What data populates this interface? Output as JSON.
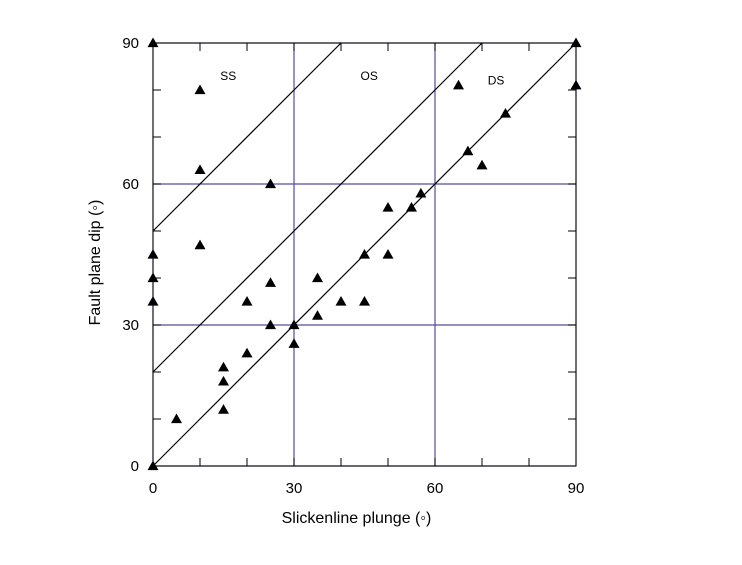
{
  "chart_data": {
    "type": "scatter",
    "title": "",
    "xlabel": "Slickenline  plunge (◦)",
    "ylabel": "Fault plane dip (◦)",
    "xlim": [
      0,
      90
    ],
    "ylim": [
      0,
      90
    ],
    "xticks": [
      0,
      30,
      60,
      90
    ],
    "yticks": [
      0,
      30,
      60,
      90
    ],
    "xtick_labels": [
      "0",
      "30",
      "60",
      "90"
    ],
    "ytick_labels": [
      "0",
      "30",
      "60",
      "90"
    ],
    "grid": true,
    "grid_color": "#5b4a99",
    "marker": "triangle",
    "marker_color": "#000000",
    "points": [
      [
        0,
        90
      ],
      [
        10,
        80
      ],
      [
        10,
        63
      ],
      [
        25,
        60
      ],
      [
        10,
        47
      ],
      [
        0,
        45
      ],
      [
        0,
        40
      ],
      [
        0,
        35
      ],
      [
        25,
        39
      ],
      [
        20,
        35
      ],
      [
        25,
        30
      ],
      [
        20,
        24
      ],
      [
        15,
        21
      ],
      [
        15,
        18
      ],
      [
        15,
        12
      ],
      [
        5,
        10
      ],
      [
        0,
        0
      ],
      [
        30,
        30
      ],
      [
        30,
        26
      ],
      [
        35,
        40
      ],
      [
        35,
        32
      ],
      [
        40,
        35
      ],
      [
        45,
        45
      ],
      [
        45,
        35
      ],
      [
        50,
        55
      ],
      [
        50,
        45
      ],
      [
        55,
        55
      ],
      [
        57,
        58
      ],
      [
        65,
        81
      ],
      [
        67,
        67
      ],
      [
        70,
        64
      ],
      [
        75,
        75
      ],
      [
        90,
        90
      ],
      [
        90,
        81
      ]
    ],
    "lines": [
      {
        "x": [
          0,
          40
        ],
        "y": [
          50,
          90
        ]
      },
      {
        "x": [
          0,
          70
        ],
        "y": [
          20,
          90
        ]
      },
      {
        "x": [
          0,
          90
        ],
        "y": [
          0,
          90
        ]
      }
    ],
    "annotations": [
      {
        "text": "SS",
        "x": 16,
        "y": 83
      },
      {
        "text": "OS",
        "x": 46,
        "y": 83
      },
      {
        "text": "DS",
        "x": 73,
        "y": 82
      }
    ]
  }
}
